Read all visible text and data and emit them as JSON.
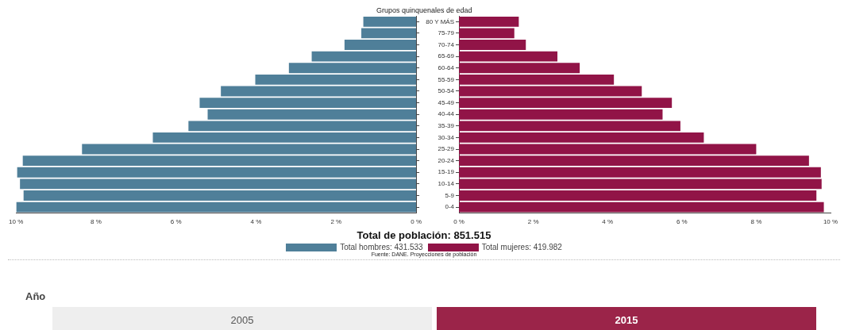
{
  "chart_data": [
    {
      "type": "bar",
      "orientation": "horizontal",
      "subtitle": "Total de población: 851.515",
      "annotations": [
        "Fuente: DANE. Proyecciones de población"
      ],
      "legend": "bottom",
      "tick_labels": "x",
      "categories": [
        null,
        null,
        null,
        null,
        null,
        null,
        null,
        null,
        null,
        null,
        null,
        null,
        null,
        null,
        null,
        null,
        null
      ],
      "xlim": [
        10,
        0
      ],
      "xticks": [
        {
          "value": 10,
          "label": "10 %"
        },
        {
          "value": 8,
          "label": "8 %"
        },
        {
          "value": 6,
          "label": "6 %"
        },
        {
          "value": 4,
          "label": "4 %"
        },
        {
          "value": 2,
          "label": "2 %"
        },
        {
          "value": 0,
          "label": "0 %"
        }
      ],
      "series": [
        {
          "name": "Total hombres: 431.533",
          "color": "#4f7f99",
          "values": [
            1.32,
            1.37,
            1.79,
            2.61,
            3.18,
            4.02,
            4.88,
            5.41,
            5.21,
            5.69,
            6.58,
            8.35,
            9.83,
            9.97,
            9.9,
            9.81,
            9.99
          ]
        }
      ]
    },
    {
      "type": "bar",
      "orientation": "horizontal",
      "ylabel": "Grupos quinquenales de edad",
      "legend": "bottom",
      "categories": [
        "80 Y MÁS",
        "75-79",
        "70-74",
        "65-69",
        "60-64",
        "55-59",
        "50-54",
        "45-49",
        "40-44",
        "35-39",
        "30-34",
        "25-29",
        "20-24",
        "15-19",
        "10-14",
        "5-9",
        "0-4"
      ],
      "xlim": [
        0,
        10
      ],
      "xticks": [
        {
          "value": 0,
          "label": "0 %"
        },
        {
          "value": 2,
          "label": "2 %"
        },
        {
          "value": 4,
          "label": "4 %"
        },
        {
          "value": 6,
          "label": "6 %"
        },
        {
          "value": 8,
          "label": "8 %"
        },
        {
          "value": 10,
          "label": "10 %"
        }
      ],
      "series": [
        {
          "name": "Total mujeres: 419.982",
          "color": "#911447",
          "values": [
            1.61,
            1.49,
            1.8,
            2.65,
            3.25,
            4.17,
            4.92,
            5.73,
            5.48,
            5.96,
            6.59,
            8.0,
            9.42,
            9.74,
            9.76,
            9.62,
            9.82
          ]
        }
      ]
    },
    {
      "type": "other",
      "title": "Año",
      "categories": [
        "2005",
        "2015"
      ],
      "colors": [
        "#eeeeee",
        "#9b2449"
      ]
    }
  ]
}
